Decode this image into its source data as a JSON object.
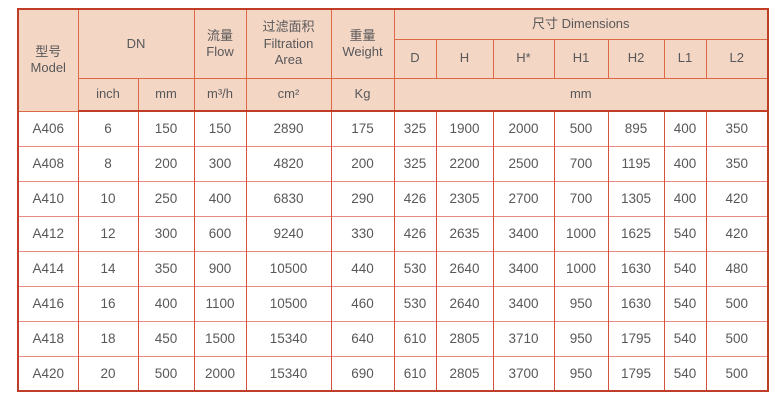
{
  "colors": {
    "header_bg": "#f4d6c4",
    "outer_border": "#c03d28",
    "header_line": "#de6843",
    "row_line": "#e98b80",
    "column_line": "#d6523f",
    "text": "#58585a"
  },
  "header": {
    "model_zh": "型号",
    "model_en": "Model",
    "dn": "DN",
    "flow_zh": "流量",
    "flow_en": "Flow",
    "filtration_zh": "过滤面积",
    "filtration_en_line1": "Filtration",
    "filtration_en_line2": "Area",
    "weight_zh": "重量",
    "weight_en": "Weight",
    "dimensions": "尺寸 Dimensions",
    "dim_cols": [
      "D",
      "H",
      "H*",
      "H1",
      "H2",
      "L1",
      "L2"
    ],
    "units": {
      "inch": "inch",
      "mm": "mm",
      "flow": "m³/h",
      "area": "cm²",
      "weight": "Kg",
      "dims_mm": "mm"
    }
  },
  "rows": [
    {
      "cells": [
        "A406",
        "6",
        "150",
        "150",
        "2890",
        "175",
        "325",
        "1900",
        "2000",
        "500",
        "895",
        "400",
        "350"
      ]
    },
    {
      "cells": [
        "A408",
        "8",
        "200",
        "300",
        "4820",
        "200",
        "325",
        "2200",
        "2500",
        "700",
        "1195",
        "400",
        "350"
      ]
    },
    {
      "cells": [
        "A410",
        "10",
        "250",
        "400",
        "6830",
        "290",
        "426",
        "2305",
        "2700",
        "700",
        "1305",
        "400",
        "420"
      ]
    },
    {
      "cells": [
        "A412",
        "12",
        "300",
        "600",
        "9240",
        "330",
        "426",
        "2635",
        "3400",
        "1000",
        "1625",
        "540",
        "420"
      ]
    },
    {
      "cells": [
        "A414",
        "14",
        "350",
        "900",
        "10500",
        "440",
        "530",
        "2640",
        "3400",
        "1000",
        "1630",
        "540",
        "480"
      ]
    },
    {
      "cells": [
        "A416",
        "16",
        "400",
        "1100",
        "10500",
        "460",
        "530",
        "2640",
        "3400",
        "950",
        "1630",
        "540",
        "500"
      ]
    },
    {
      "cells": [
        "A418",
        "18",
        "450",
        "1500",
        "15340",
        "640",
        "610",
        "2805",
        "3710",
        "950",
        "1795",
        "540",
        "500"
      ]
    },
    {
      "cells": [
        "A420",
        "20",
        "500",
        "2000",
        "15340",
        "690",
        "610",
        "2805",
        "3700",
        "950",
        "1795",
        "540",
        "500"
      ]
    }
  ]
}
